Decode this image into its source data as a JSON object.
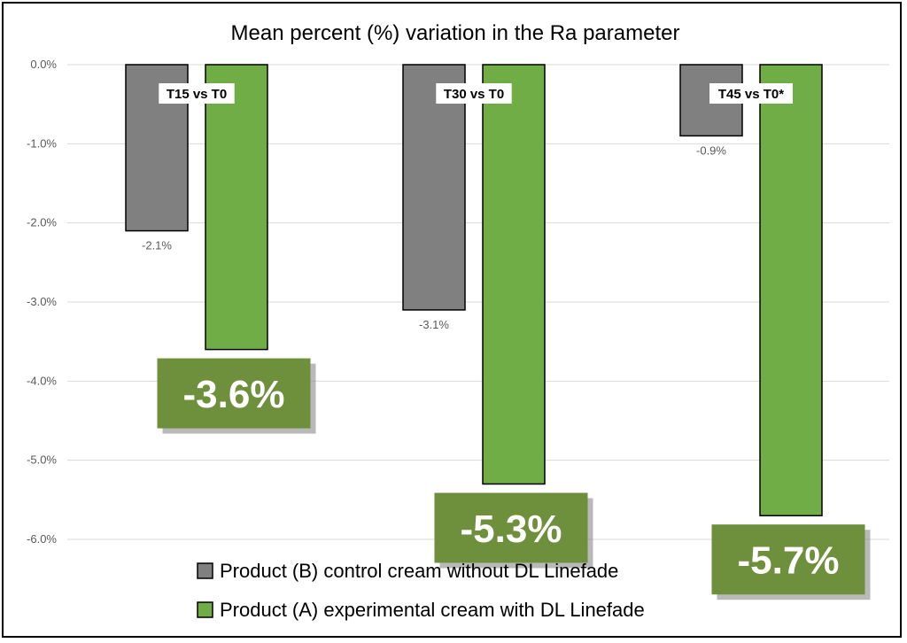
{
  "chart_data": {
    "type": "bar",
    "title": "Mean percent (%) variation in the Ra parameter",
    "categories": [
      "T15 vs T0",
      "T30 vs T0",
      "T45 vs T0*"
    ],
    "series": [
      {
        "name": "Product (B) control cream without DL Linefade",
        "values": [
          -2.1,
          -3.1,
          -0.9
        ],
        "labels": [
          "-2.1%",
          "-3.1%",
          "-0.9%"
        ],
        "color": "#808080"
      },
      {
        "name": "Product (A) experimental cream with DL Linefade",
        "values": [
          -3.6,
          -5.3,
          -5.7
        ],
        "labels": [
          "-3.6%",
          "-5.3%",
          "-5.7%"
        ],
        "color": "#70ad47"
      }
    ],
    "ylim": [
      -6.0,
      0.0
    ],
    "yticks": [
      0.0,
      -1.0,
      -2.0,
      -3.0,
      -4.0,
      -5.0,
      -6.0
    ],
    "ytick_labels": [
      "0.0%",
      "-1.0%",
      "-2.0%",
      "-3.0%",
      "-4.0%",
      "-5.0%",
      "-6.0%"
    ],
    "xlabel": "",
    "ylabel": "",
    "grid": true,
    "legend_position": "bottom",
    "callout_color": "#6e8f3b"
  }
}
